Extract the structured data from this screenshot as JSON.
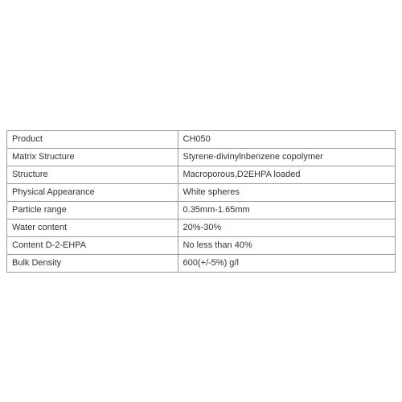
{
  "spec_table": {
    "type": "table",
    "columns": [
      "property",
      "value"
    ],
    "col_widths": [
      "44%",
      "56%"
    ],
    "border_color": "#999999",
    "background_color": "#ffffff",
    "text_color": "#333333",
    "font_size": 11,
    "rows": [
      {
        "label": "Product",
        "value": "CH050"
      },
      {
        "label": "Matrix Structure",
        "value": "Styrene-divinylnbenzene copolymer"
      },
      {
        "label": "Structure",
        "value": "Macroporous,D2EHPA loaded"
      },
      {
        "label": "Physical Appearance",
        "value": "White spheres"
      },
      {
        "label": "Particle range",
        "value": "0.35mm-1.65mm"
      },
      {
        "label": "Water content",
        "value": "20%-30%"
      },
      {
        "label": "Content D-2-EHPA",
        "value": "No less than 40%"
      },
      {
        "label": "Bulk Density",
        "value": "600(+/-5%) g/l"
      }
    ]
  }
}
